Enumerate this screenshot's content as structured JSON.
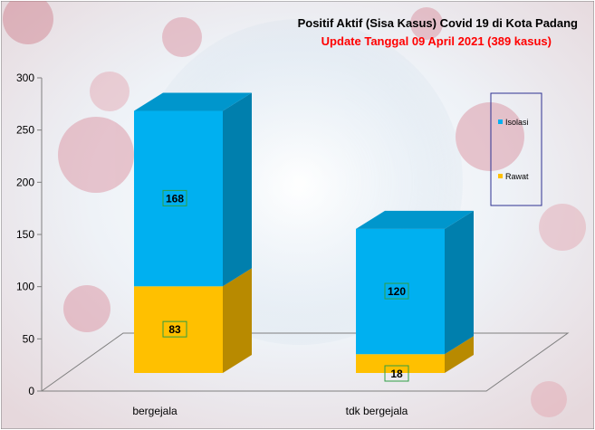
{
  "chart_data": {
    "type": "bar",
    "stacked": true,
    "three_d": true,
    "title": "Positif Aktif  (Sisa Kasus) Covid 19 di Kota Padang",
    "subtitle": "Update Tanggal 09 April 2021  (389 kasus)",
    "categories": [
      "bergejala",
      "tdk bergejala"
    ],
    "series": [
      {
        "name": "Rawat",
        "values": [
          83,
          18
        ],
        "color": "#FFC000"
      },
      {
        "name": "Isolasi",
        "values": [
          168,
          120
        ],
        "color": "#00B0F0"
      }
    ],
    "ylim": [
      0,
      300
    ],
    "yticks": [
      0,
      50,
      100,
      150,
      200,
      250,
      300
    ],
    "legend_position": "right",
    "grid": false,
    "colors": {
      "title": "#000000",
      "subtitle": "#FF0000",
      "background": "#F4F6F8",
      "legend_border": "#2E3192"
    }
  }
}
